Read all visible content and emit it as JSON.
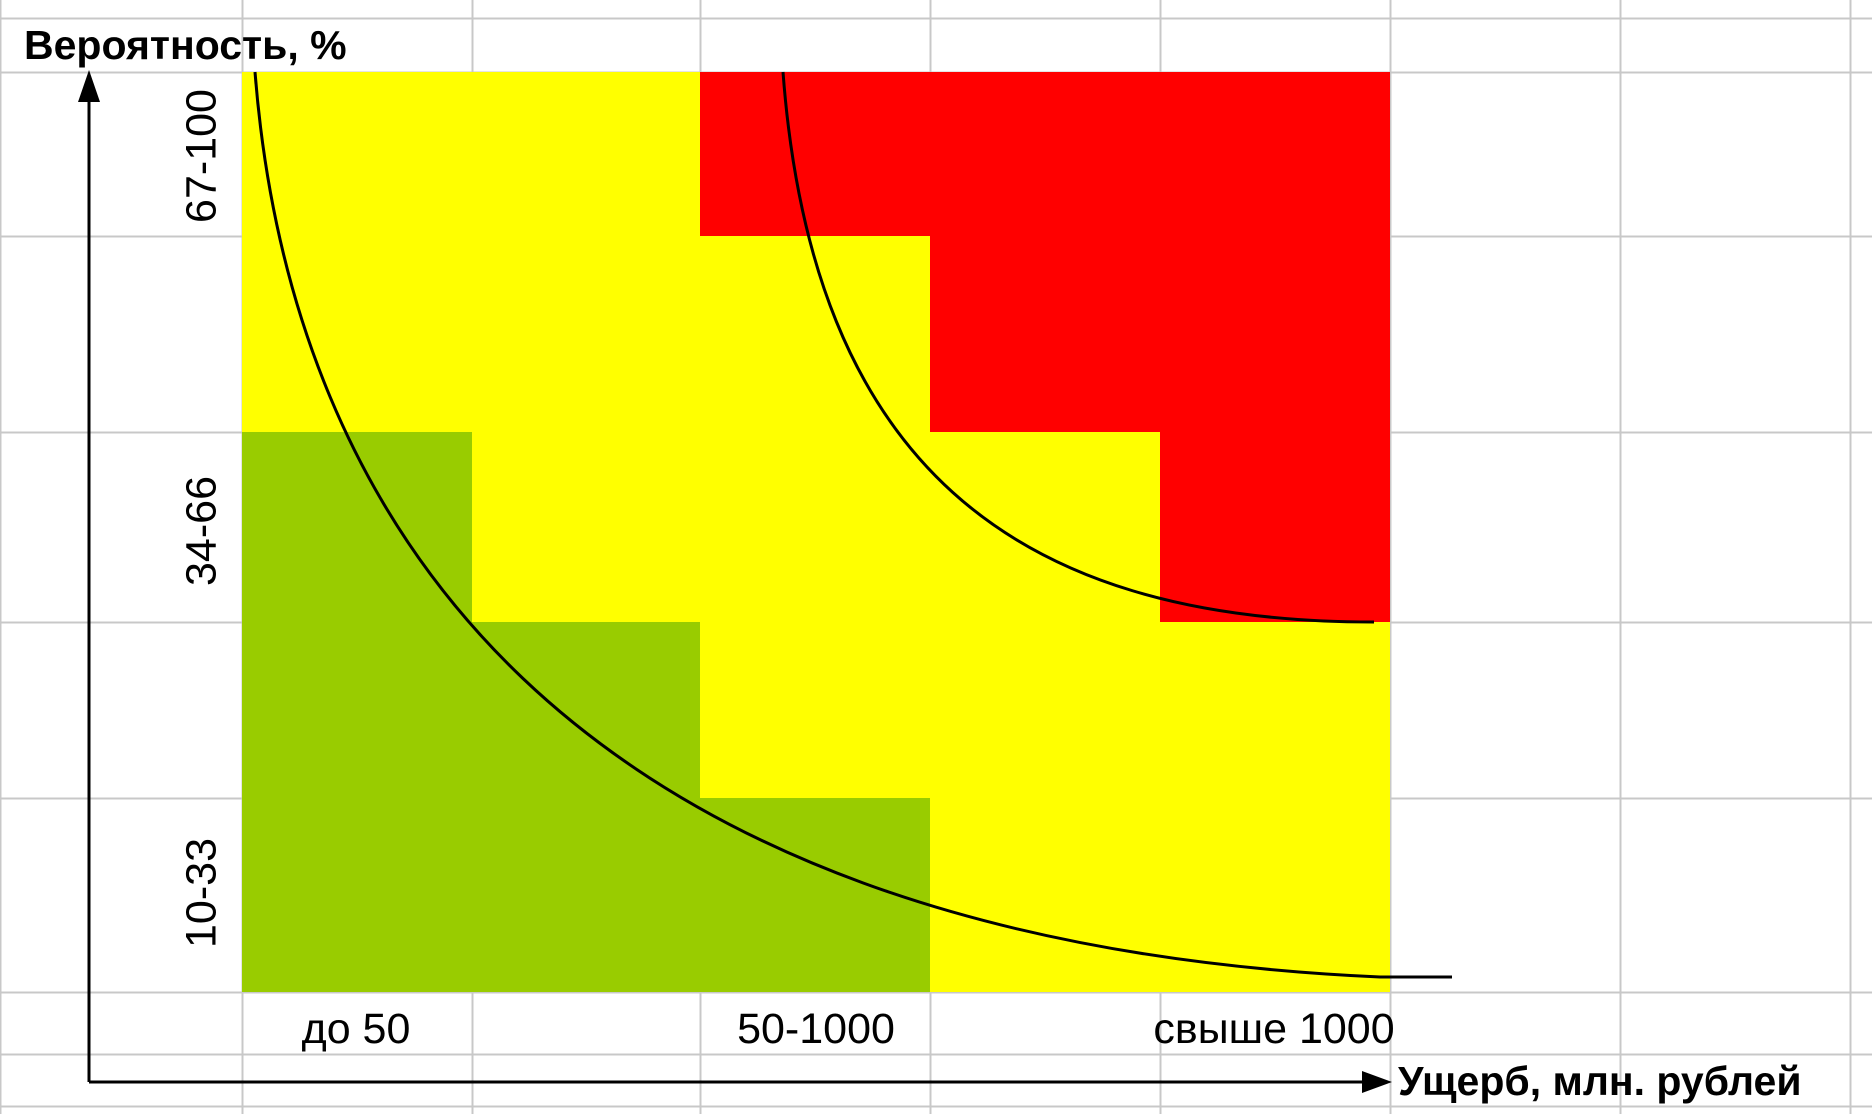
{
  "chart_data": {
    "type": "heatmap",
    "title": "",
    "ylabel": "Вероятность, %",
    "xlabel": "Ущерб, млн. рублей",
    "x_categories": [
      "до 50",
      "50-1000",
      "свыше 1000"
    ],
    "y_categories": [
      "10-33",
      "34-66",
      "67-100"
    ],
    "colors": {
      "green": "#99cc00",
      "yellow": "#ffff00",
      "red": "#ff0000",
      "grid": "#c8c8c8",
      "line": "#000000"
    },
    "legend": "none",
    "grid": true,
    "zones": [
      {
        "row": "10-33",
        "cells": [
          "green",
          "green",
          "green",
          "green",
          "yellow"
        ]
      },
      {
        "row": "34-66",
        "cells": [
          "green",
          "yellow",
          "yellow",
          "yellow",
          "yellow"
        ],
        "note": "split band"
      },
      {
        "row": "67-100",
        "cells": [
          "yellow",
          "yellow",
          "red",
          "red",
          "red"
        ]
      }
    ],
    "curves": 2
  }
}
